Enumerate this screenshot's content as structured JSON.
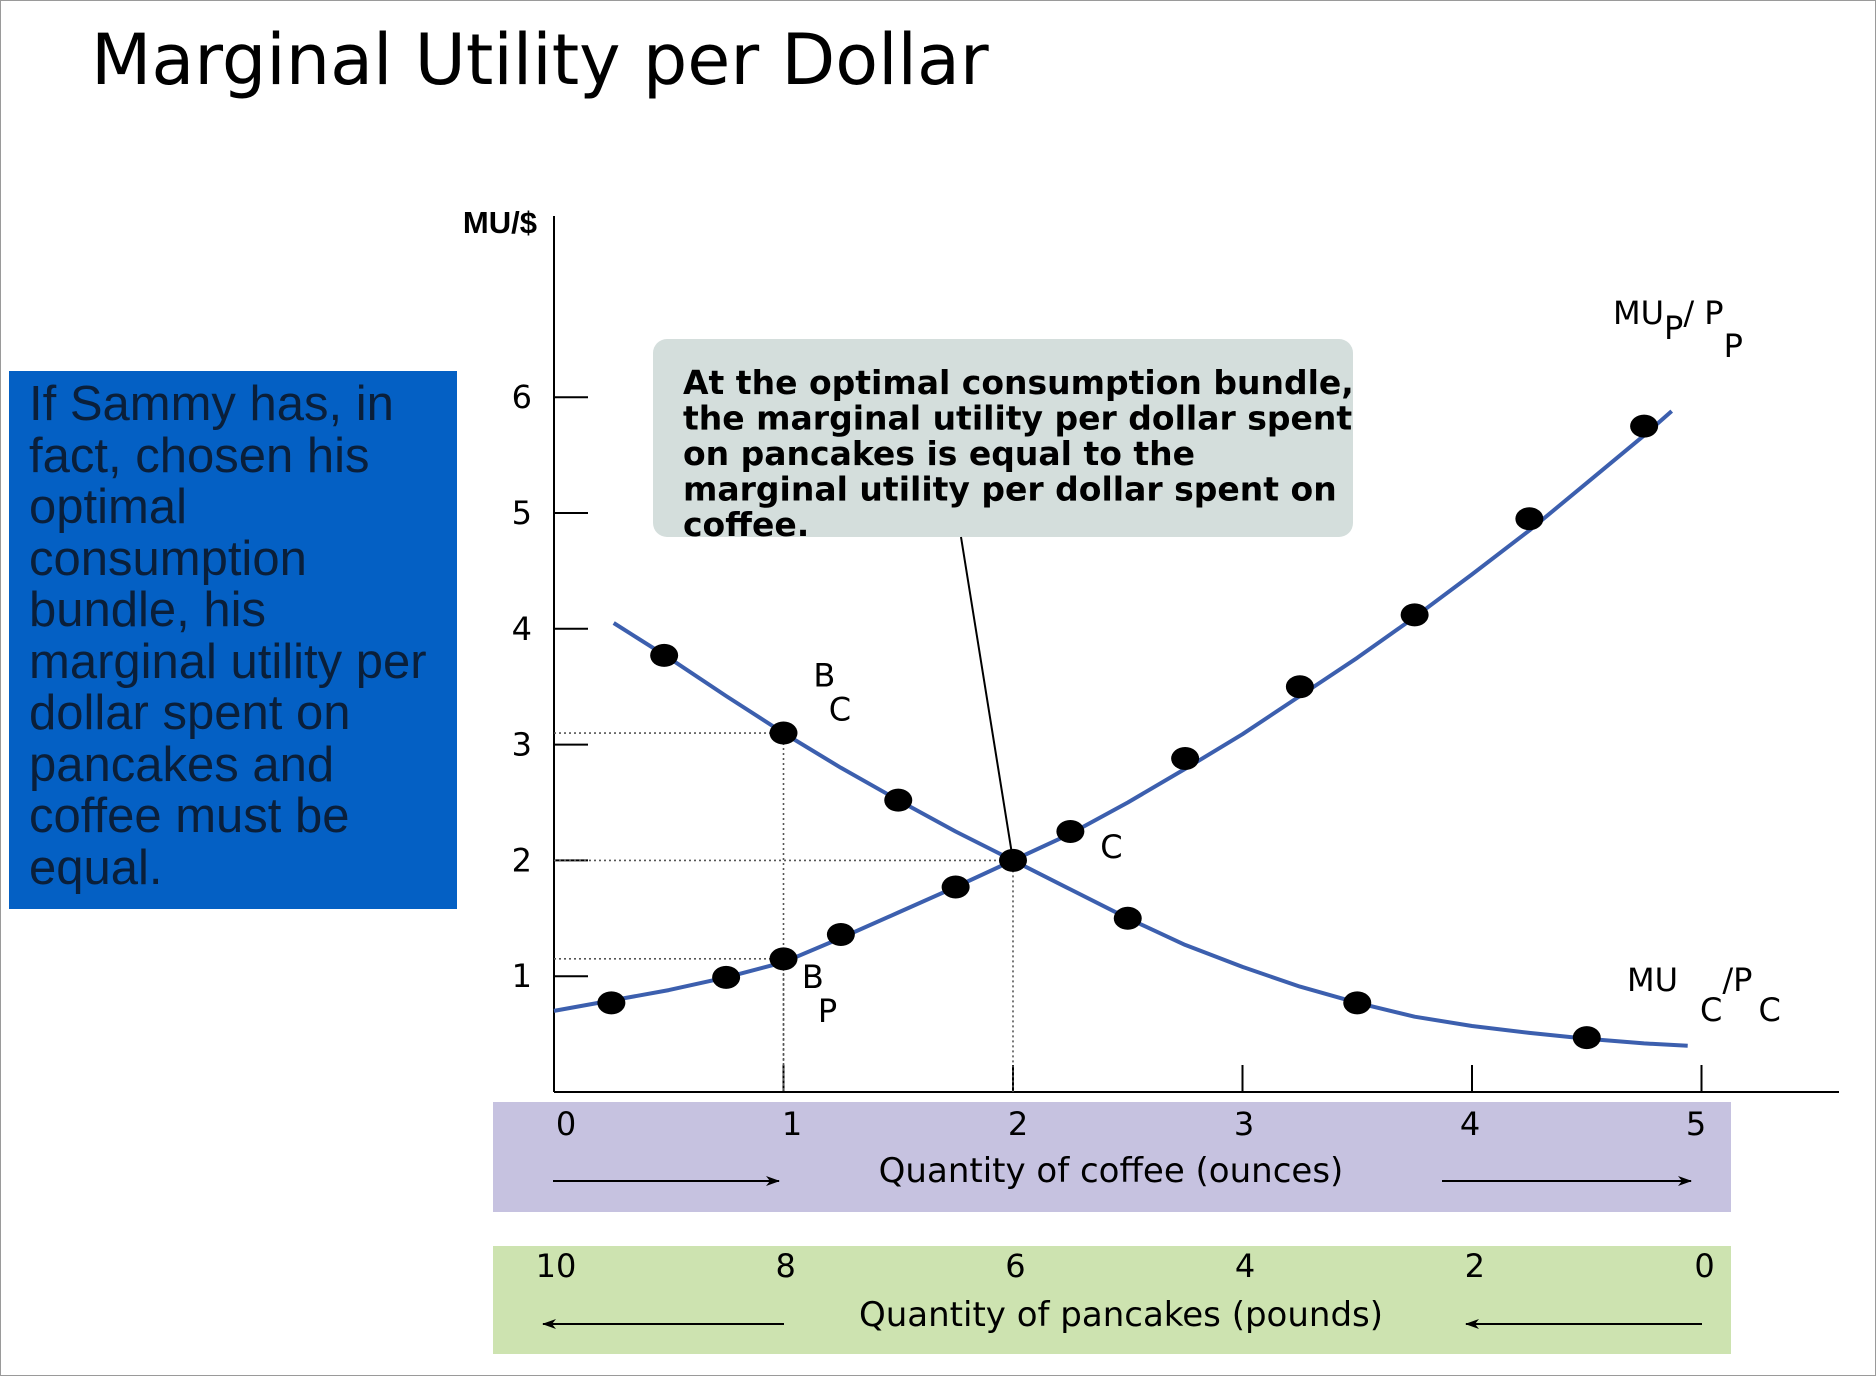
{
  "slide": {
    "title": "Marginal Utility per Dollar",
    "note": "If Sammy has, in fact, chosen his optimal consumption bundle, his marginal utility per dollar spent on pancakes and coffee must be equal.",
    "callout_lines": [
      "At the optimal consumption bundle,",
      "the marginal utility per dollar spent",
      "on pancakes is equal to the",
      "marginal utility per dollar  spent on",
      "coffee."
    ]
  },
  "colors": {
    "note_bg": "#0460c4",
    "curve": "#3c5fae",
    "callout_bg": "#d4dedc",
    "coffee_band": "#c6c2e0",
    "pancake_band": "#cde3b0"
  },
  "chart_data": {
    "type": "line",
    "ylabel": "MU/$",
    "ylim": [
      0,
      6
    ],
    "yticks": [
      1,
      2,
      3,
      4,
      5,
      6
    ],
    "x_coffee": {
      "label": "Quantity of coffee (ounces)",
      "ticks": [
        0,
        1,
        2,
        3,
        4,
        5
      ]
    },
    "x_pancakes": {
      "label": "Quantity of pancakes (pounds)",
      "ticks": [
        10,
        8,
        6,
        4,
        2,
        0
      ]
    },
    "series": [
      {
        "name": "MU_C/P_C",
        "label_main": "MU",
        "label_sub1": "C",
        "label_slash": "/P",
        "label_sub2": "C",
        "curve": [
          [
            0.26,
            4.05
          ],
          [
            0.5,
            3.75
          ],
          [
            0.75,
            3.42
          ],
          [
            1.0,
            3.1
          ],
          [
            1.25,
            2.8
          ],
          [
            1.5,
            2.52
          ],
          [
            1.75,
            2.25
          ],
          [
            2.0,
            2.0
          ],
          [
            2.25,
            1.75
          ],
          [
            2.5,
            1.5
          ],
          [
            2.75,
            1.27
          ],
          [
            3.0,
            1.08
          ],
          [
            3.25,
            0.91
          ],
          [
            3.5,
            0.77
          ],
          [
            3.75,
            0.65
          ],
          [
            4.0,
            0.57
          ],
          [
            4.25,
            0.51
          ],
          [
            4.5,
            0.46
          ],
          [
            4.75,
            0.42
          ],
          [
            4.94,
            0.4
          ]
        ],
        "points": [
          [
            0.48,
            3.77
          ],
          [
            1.0,
            3.1
          ],
          [
            1.5,
            2.52
          ],
          [
            2.0,
            2.0
          ],
          [
            2.5,
            1.5
          ],
          [
            3.5,
            0.77
          ],
          [
            4.5,
            0.47
          ]
        ]
      },
      {
        "name": "MU_P/P_P",
        "label_main": "MU",
        "label_sub1": "P",
        "label_slash": "/ P",
        "label_sub2": "P",
        "curve": [
          [
            0.0,
            0.7
          ],
          [
            0.25,
            0.79
          ],
          [
            0.5,
            0.88
          ],
          [
            0.75,
            0.99
          ],
          [
            1.0,
            1.12
          ],
          [
            1.25,
            1.33
          ],
          [
            1.5,
            1.55
          ],
          [
            1.75,
            1.77
          ],
          [
            2.0,
            2.0
          ],
          [
            2.25,
            2.23
          ],
          [
            2.5,
            2.5
          ],
          [
            2.75,
            2.79
          ],
          [
            3.0,
            3.09
          ],
          [
            3.25,
            3.42
          ],
          [
            3.5,
            3.75
          ],
          [
            3.75,
            4.1
          ],
          [
            4.0,
            4.47
          ],
          [
            4.25,
            4.85
          ],
          [
            4.5,
            5.26
          ],
          [
            4.75,
            5.67
          ],
          [
            4.87,
            5.88
          ]
        ],
        "points": [
          [
            0.25,
            0.77
          ],
          [
            0.75,
            0.99
          ],
          [
            1.0,
            1.15
          ],
          [
            1.25,
            1.36
          ],
          [
            1.75,
            1.77
          ],
          [
            2.25,
            2.25
          ],
          [
            2.75,
            2.88
          ],
          [
            3.25,
            3.5
          ],
          [
            3.75,
            4.12
          ],
          [
            4.25,
            4.95
          ],
          [
            4.75,
            5.75
          ]
        ]
      }
    ],
    "guides": [
      {
        "x": 1,
        "y": 3.1
      },
      {
        "x": 1,
        "y": 1.15
      },
      {
        "x": 2,
        "y": 2.0
      }
    ],
    "annotations": [
      {
        "main": "B",
        "sub": "C",
        "x": 1.13,
        "y": 3.5
      },
      {
        "main": "B",
        "sub": "P",
        "x": 1.08,
        "y": 0.9
      },
      {
        "main": "C",
        "sub": "",
        "x": 2.38,
        "y": 2.02
      }
    ],
    "callout_target": [
      2.0,
      2.0
    ]
  }
}
